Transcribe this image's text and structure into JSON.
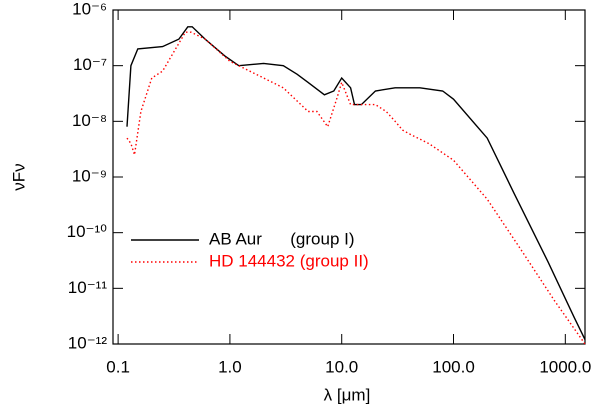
{
  "chart_data": {
    "type": "line",
    "xlabel": "λ [μm]",
    "ylabel": "νFν",
    "xscale": "log",
    "yscale": "log",
    "xlim": [
      0.09,
      1500
    ],
    "ylim": [
      1e-12,
      1e-06
    ],
    "xticks": [
      0.1,
      {
        "value": 1,
        "label": "1.0"
      },
      {
        "value": 10,
        "label": "10.0"
      },
      {
        "value": 100,
        "label": "100.0"
      },
      {
        "value": 1000,
        "label": "1000.0"
      }
    ],
    "yticks": [
      {
        "value": 1e-12,
        "label": "10⁻¹²"
      },
      {
        "value": 1e-11,
        "label": "10⁻¹¹"
      },
      {
        "value": 1e-10,
        "label": "10⁻¹⁰"
      },
      {
        "value": 1e-09,
        "label": "10⁻⁹"
      },
      {
        "value": 1e-08,
        "label": "10⁻⁸"
      },
      {
        "value": 1e-07,
        "label": "10⁻⁷"
      },
      {
        "value": 1e-06,
        "label": "10⁻⁶"
      }
    ],
    "legend_position": "center left",
    "series": [
      {
        "name": "AB Aur      (group I)",
        "color": "#000000",
        "dash": "solid",
        "x": [
          0.12,
          0.13,
          0.15,
          0.25,
          0.35,
          0.42,
          0.46,
          0.6,
          0.9,
          1.2,
          2,
          3,
          4,
          5,
          7,
          8.5,
          10,
          12,
          13,
          15,
          20,
          30,
          50,
          80,
          100,
          200,
          350,
          700,
          1200,
          1500
        ],
        "values": [
          8e-09,
          1e-07,
          2e-07,
          2.2e-07,
          3e-07,
          5e-07,
          5e-07,
          3e-07,
          1.5e-07,
          1e-07,
          1.1e-07,
          1e-07,
          7e-08,
          5e-08,
          3e-08,
          3.5e-08,
          6e-08,
          4e-08,
          2e-08,
          2e-08,
          3.5e-08,
          4e-08,
          4e-08,
          3.5e-08,
          2.5e-08,
          5e-09,
          5e-10,
          3e-11,
          3e-12,
          1.2e-12
        ]
      },
      {
        "name": "HD 144432 (group II)",
        "color": "#ff0000",
        "dash": "dotted",
        "x": [
          0.12,
          0.13,
          0.14,
          0.16,
          0.2,
          0.25,
          0.3,
          0.4,
          0.45,
          0.6,
          1,
          2,
          3,
          5,
          6,
          7.5,
          9,
          10,
          12,
          15,
          20,
          25,
          30,
          35,
          40,
          60,
          100,
          200,
          400,
          800,
          1500
        ],
        "values": [
          5e-09,
          4e-09,
          2.5e-09,
          1.5e-08,
          6e-08,
          8e-08,
          1.5e-07,
          4e-07,
          4e-07,
          3e-07,
          1.2e-07,
          6e-08,
          4e-08,
          1.5e-08,
          1.5e-08,
          8e-09,
          2.5e-08,
          5e-08,
          2e-08,
          2e-08,
          2e-08,
          1.5e-08,
          1e-08,
          7e-09,
          6e-09,
          4e-09,
          2e-09,
          4e-10,
          5e-11,
          6e-12,
          1e-12
        ]
      }
    ]
  }
}
